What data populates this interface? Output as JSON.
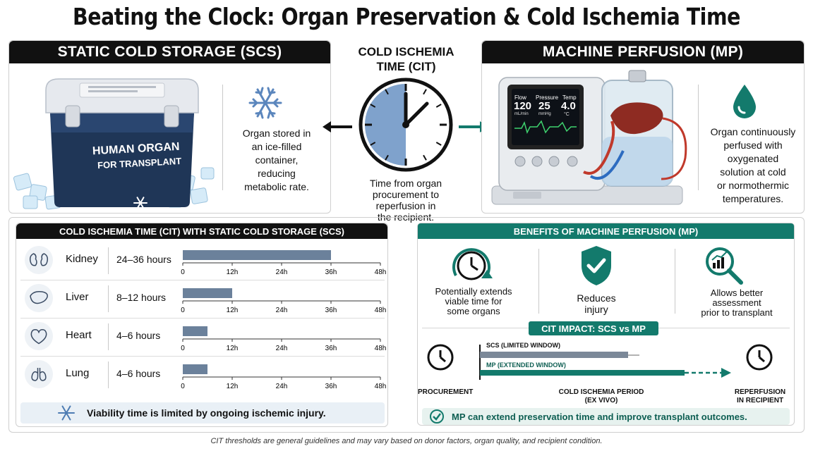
{
  "title": "Beating the Clock: Organ Preservation & Cold Ischemia Time",
  "scs": {
    "heading": "STATIC COLD STORAGE (SCS)",
    "cooler_label_line1": "HUMAN ORGAN",
    "cooler_label_line2": "FOR TRANSPLANT",
    "desc": [
      "Organ stored in",
      "an ice-filled",
      "container,",
      "reducing",
      "metabolic rate."
    ]
  },
  "cit": {
    "title_line1": "COLD ISCHEMIA",
    "title_line2": "TIME (CIT)",
    "desc": [
      "Time from organ",
      "procurement to",
      "reperfusion in",
      "the recipient."
    ]
  },
  "mp": {
    "heading": "MACHINE PERFUSION (MP)",
    "screen": {
      "flow_label": "Flow",
      "flow_value": "120",
      "flow_unit": "mL/min",
      "pressure_label": "Pressure",
      "pressure_value": "25",
      "pressure_unit": "mmHg",
      "temp_label": "Temp",
      "temp_value": "4.0",
      "temp_unit": "°C"
    },
    "desc": [
      "Organ continuously",
      "perfused with",
      "oxygenated",
      "solution at cold",
      "or normothermic",
      "temperatures."
    ]
  },
  "cit_table": {
    "heading": "COLD ISCHEMIA TIME (CIT) WITH STATIC COLD STORAGE (SCS)",
    "ticks": [
      "0",
      "12h",
      "24h",
      "36h",
      "48h"
    ],
    "footer": "Viability time is limited by ongoing ischemic injury."
  },
  "chart_data": {
    "type": "bar",
    "orientation": "horizontal",
    "categories": [
      "Kidney",
      "Liver",
      "Heart",
      "Lung"
    ],
    "labels": [
      "24–36 hours",
      "8–12 hours",
      "4–6 hours",
      "4–6 hours"
    ],
    "values": [
      36,
      12,
      6,
      6
    ],
    "xlim": [
      0,
      48
    ],
    "xticks": [
      "0",
      "12h",
      "24h",
      "36h",
      "48h"
    ],
    "title": "COLD ISCHEMIA TIME (CIT) WITH STATIC COLD STORAGE (SCS)",
    "bar_color": "#6b819b"
  },
  "benefits": {
    "heading": "BENEFITS OF MACHINE PERFUSION (MP)",
    "items": [
      {
        "lines": [
          "Potentially extends",
          "viable time for",
          "some organs"
        ]
      },
      {
        "lines": [
          "Reduces",
          "injury"
        ]
      },
      {
        "lines": [
          "Allows better",
          "assessment",
          "prior to transplant"
        ]
      }
    ],
    "impact_heading": "CIT IMPACT: SCS vs MP",
    "scs_window": "SCS (LIMITED WINDOW)",
    "mp_window": "MP (EXTENDED WINDOW)",
    "procurement": "PROCUREMENT",
    "period_line1": "COLD ISCHEMIA PERIOD",
    "period_line2": "(EX VIVO)",
    "reperfusion_line1": "REPERFUSION",
    "reperfusion_line2": "IN RECIPIENT",
    "footer": "MP can extend preservation time and improve transplant outcomes."
  },
  "disclaimer": "CIT thresholds are general guidelines and may vary based on donor factors, organ quality, and recipient condition.",
  "colors": {
    "teal": "#137a6c",
    "navy": "#1e3556",
    "bar": "#6b819b",
    "clock_fill": "#7fa2cc",
    "ice": "#cfe6f7"
  }
}
